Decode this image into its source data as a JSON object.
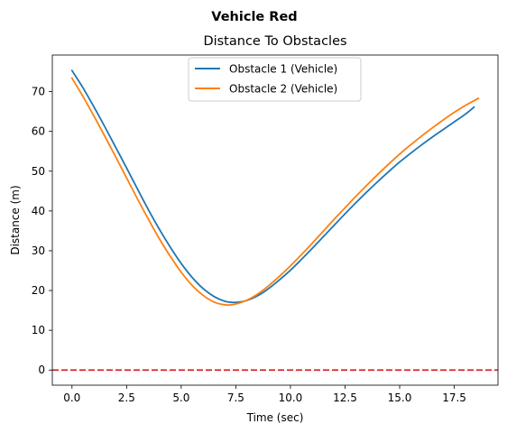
{
  "chart_data": {
    "type": "line",
    "suptitle": "Vehicle Red",
    "title": "Distance To Obstacles",
    "xlabel": "Time (sec)",
    "ylabel": "Distance (m)",
    "xlim": [
      -0.9,
      19.5
    ],
    "ylim": [
      -3.8,
      79.2
    ],
    "xticks": [
      0.0,
      2.5,
      5.0,
      7.5,
      10.0,
      12.5,
      15.0,
      17.5
    ],
    "xtick_labels": [
      "0.0",
      "2.5",
      "5.0",
      "7.5",
      "10.0",
      "12.5",
      "15.0",
      "17.5"
    ],
    "yticks": [
      0,
      10,
      20,
      30,
      40,
      50,
      60,
      70
    ],
    "ytick_labels": [
      "0",
      "10",
      "20",
      "30",
      "40",
      "50",
      "60",
      "70"
    ],
    "grid": false,
    "legend": "upper-center",
    "threshold": {
      "y": 0,
      "color": "#d62728",
      "style": "dashed"
    },
    "series": [
      {
        "name": "Obstacle 1 (Vehicle)",
        "color": "#1f77b4",
        "x": [
          0.0,
          0.5,
          1.0,
          1.5,
          2.0,
          2.5,
          3.0,
          3.5,
          4.0,
          4.5,
          5.0,
          5.5,
          6.0,
          6.5,
          7.0,
          7.4,
          7.8,
          8.2,
          8.6,
          9.0,
          9.5,
          10.0,
          10.5,
          11.0,
          11.5,
          12.0,
          12.5,
          13.0,
          13.5,
          14.0,
          14.5,
          15.0,
          15.5,
          16.0,
          16.5,
          17.0,
          17.5,
          18.0,
          18.4
        ],
        "y": [
          75.3,
          71.0,
          66.2,
          61.2,
          56.0,
          50.8,
          45.5,
          40.3,
          35.4,
          30.9,
          26.8,
          23.3,
          20.5,
          18.5,
          17.3,
          17.0,
          17.2,
          17.9,
          19.0,
          20.5,
          22.7,
          25.1,
          27.8,
          30.6,
          33.5,
          36.4,
          39.3,
          42.1,
          44.8,
          47.4,
          49.9,
          52.3,
          54.5,
          56.6,
          58.6,
          60.5,
          62.4,
          64.3,
          66.1
        ]
      },
      {
        "name": "Obstacle 2 (Vehicle)",
        "color": "#ff7f0e",
        "x": [
          0.0,
          0.5,
          1.0,
          1.5,
          2.0,
          2.5,
          3.0,
          3.5,
          4.0,
          4.5,
          5.0,
          5.5,
          6.0,
          6.5,
          7.0,
          7.4,
          7.8,
          8.2,
          8.6,
          9.0,
          9.5,
          10.0,
          10.5,
          11.0,
          11.5,
          12.0,
          12.5,
          13.0,
          13.5,
          14.0,
          14.5,
          15.0,
          15.5,
          16.0,
          16.5,
          17.0,
          17.5,
          18.0,
          18.6
        ],
        "y": [
          73.4,
          68.8,
          63.9,
          58.8,
          53.6,
          48.3,
          43.0,
          37.9,
          33.0,
          28.6,
          24.6,
          21.3,
          18.8,
          17.1,
          16.4,
          16.5,
          17.1,
          18.1,
          19.5,
          21.2,
          23.6,
          26.2,
          29.0,
          31.9,
          34.9,
          37.9,
          40.8,
          43.7,
          46.5,
          49.2,
          51.8,
          54.3,
          56.6,
          58.8,
          60.9,
          62.9,
          64.8,
          66.5,
          68.3
        ]
      }
    ]
  }
}
